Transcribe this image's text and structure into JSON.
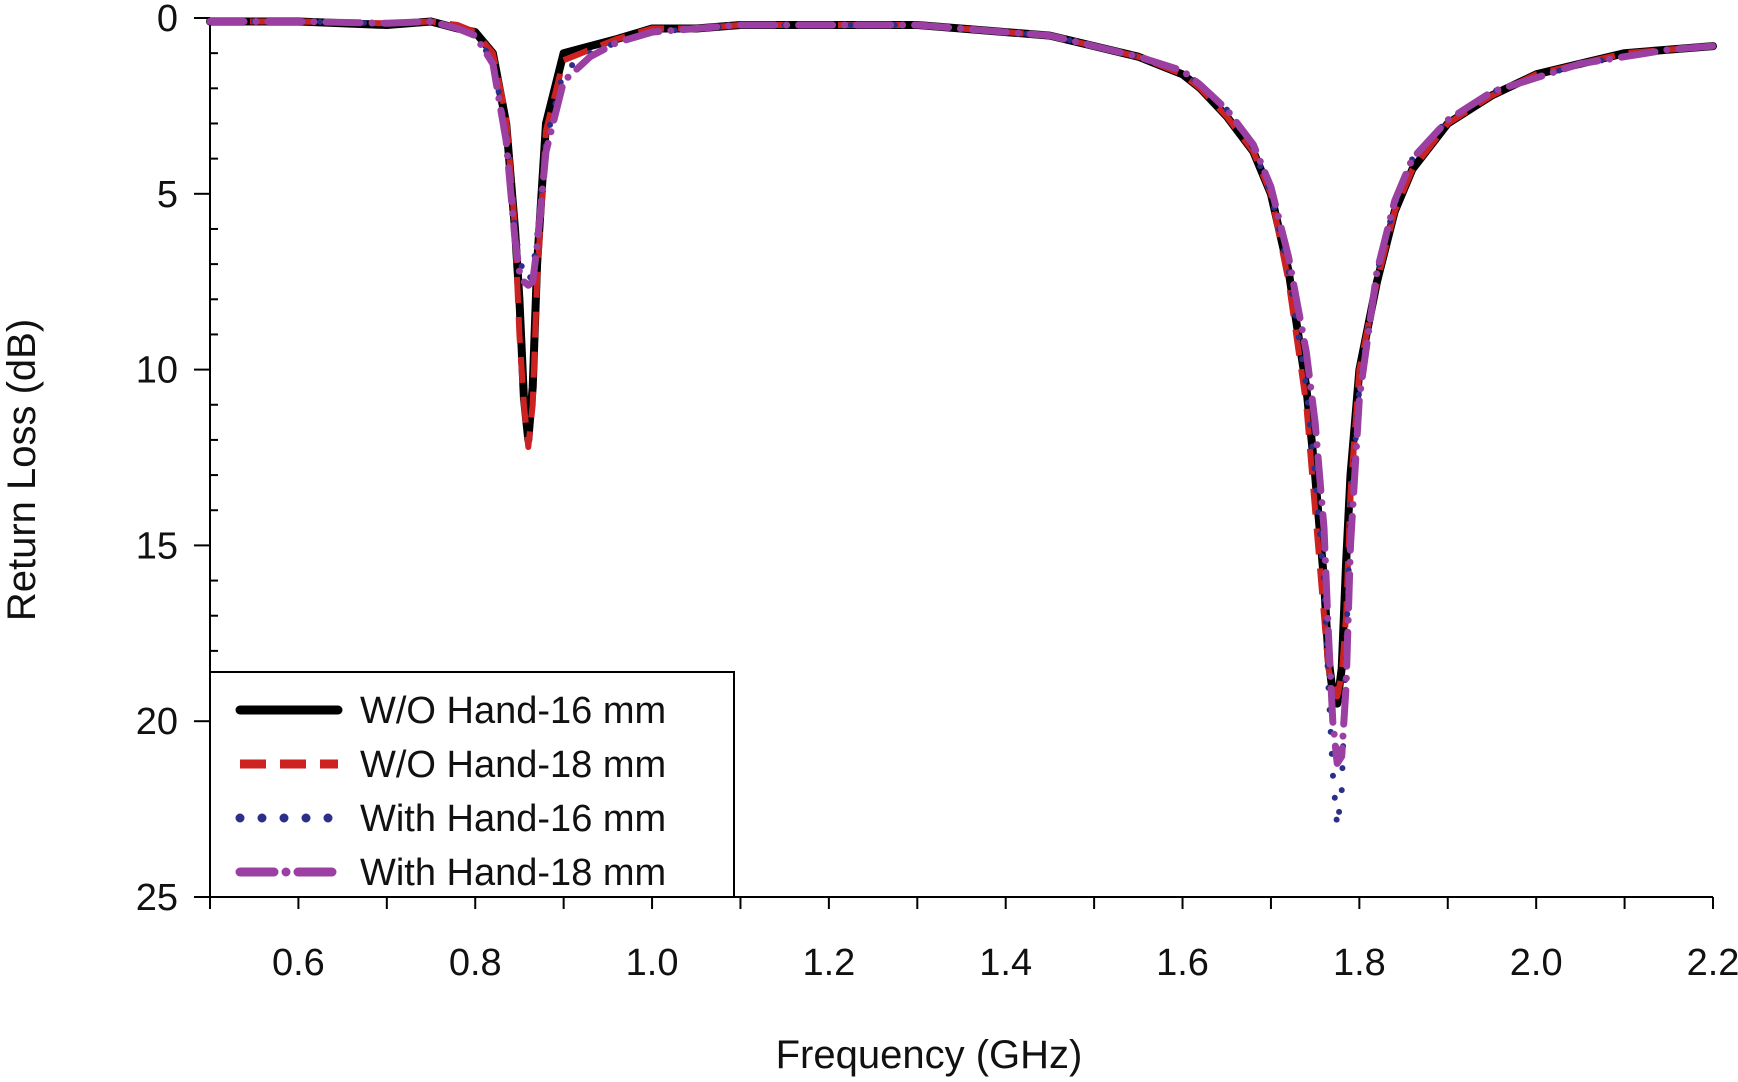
{
  "chart_data": {
    "type": "line",
    "title": "",
    "xlabel": "Frequency (GHz)",
    "ylabel": "Return Loss (dB)",
    "xlim": [
      0.5,
      2.2
    ],
    "ylim": [
      0,
      25
    ],
    "y_inverted": true,
    "x_ticks": [
      0.6,
      0.8,
      1.0,
      1.2,
      1.4,
      1.6,
      1.8,
      2.0,
      2.2
    ],
    "x_tick_labels": [
      "0.6",
      "0.8",
      "1.0",
      "1.2",
      "1.4",
      "1.6",
      "1.8",
      "2.0",
      "2.2"
    ],
    "y_ticks": [
      0,
      5,
      10,
      15,
      20,
      25
    ],
    "y_tick_labels": [
      "0",
      "5",
      "10",
      "15",
      "20",
      "25"
    ],
    "grid": false,
    "legend_position": "bottom-left",
    "series": [
      {
        "name": "W/O Hand-16 mm",
        "color": "#000000",
        "style": "solid",
        "x": [
          0.5,
          0.6,
          0.7,
          0.75,
          0.78,
          0.8,
          0.82,
          0.835,
          0.845,
          0.85,
          0.855,
          0.86,
          0.865,
          0.87,
          0.88,
          0.9,
          0.93,
          0.96,
          1.0,
          1.05,
          1.1,
          1.2,
          1.3,
          1.4,
          1.45,
          1.5,
          1.55,
          1.6,
          1.62,
          1.65,
          1.68,
          1.7,
          1.72,
          1.74,
          1.75,
          1.76,
          1.765,
          1.77,
          1.775,
          1.78,
          1.785,
          1.79,
          1.8,
          1.82,
          1.84,
          1.86,
          1.9,
          1.95,
          2.0,
          2.05,
          2.1,
          2.15,
          2.2
        ],
        "y": [
          0.1,
          0.1,
          0.2,
          0.1,
          0.3,
          0.4,
          1.0,
          3.0,
          6.0,
          8.0,
          10.8,
          12.0,
          10.5,
          7.0,
          3.0,
          1.0,
          0.8,
          0.6,
          0.3,
          0.3,
          0.2,
          0.2,
          0.2,
          0.4,
          0.5,
          0.8,
          1.1,
          1.6,
          2.0,
          2.8,
          3.8,
          5.0,
          7.2,
          10.5,
          13.0,
          16.0,
          18.2,
          19.2,
          19.5,
          18.5,
          15.5,
          13.0,
          10.0,
          7.5,
          5.5,
          4.3,
          3.0,
          2.2,
          1.6,
          1.3,
          1.0,
          0.9,
          0.8
        ]
      },
      {
        "name": "W/O Hand-18 mm",
        "color": "#cc2222",
        "style": "dashed",
        "x": [
          0.5,
          0.6,
          0.7,
          0.75,
          0.78,
          0.8,
          0.82,
          0.835,
          0.845,
          0.85,
          0.855,
          0.86,
          0.865,
          0.87,
          0.88,
          0.9,
          0.93,
          0.96,
          1.0,
          1.05,
          1.1,
          1.2,
          1.3,
          1.4,
          1.45,
          1.5,
          1.55,
          1.6,
          1.62,
          1.65,
          1.68,
          1.7,
          1.72,
          1.74,
          1.75,
          1.76,
          1.765,
          1.77,
          1.775,
          1.78,
          1.785,
          1.79,
          1.8,
          1.82,
          1.84,
          1.86,
          1.9,
          1.95,
          2.0,
          2.05,
          2.1,
          2.15,
          2.2
        ],
        "y": [
          0.1,
          0.1,
          0.15,
          0.1,
          0.2,
          0.4,
          1.0,
          2.8,
          6.0,
          9.0,
          11.0,
          12.2,
          11.0,
          7.5,
          3.2,
          1.2,
          0.9,
          0.6,
          0.3,
          0.3,
          0.2,
          0.2,
          0.2,
          0.4,
          0.5,
          0.8,
          1.1,
          1.6,
          2.0,
          2.8,
          3.8,
          5.0,
          7.5,
          11.0,
          14.0,
          17.0,
          18.5,
          19.0,
          19.3,
          18.7,
          17.0,
          13.5,
          10.0,
          7.5,
          5.5,
          4.3,
          3.0,
          2.2,
          1.6,
          1.3,
          1.0,
          0.9,
          0.8
        ]
      },
      {
        "name": "With Hand-16 mm",
        "color": "#2b2f8a",
        "style": "dotted",
        "x": [
          0.5,
          0.6,
          0.7,
          0.75,
          0.78,
          0.8,
          0.82,
          0.835,
          0.845,
          0.85,
          0.855,
          0.86,
          0.865,
          0.87,
          0.88,
          0.9,
          0.93,
          0.96,
          1.0,
          1.05,
          1.1,
          1.2,
          1.3,
          1.4,
          1.45,
          1.5,
          1.55,
          1.6,
          1.62,
          1.65,
          1.68,
          1.7,
          1.72,
          1.74,
          1.75,
          1.76,
          1.765,
          1.77,
          1.775,
          1.78,
          1.785,
          1.79,
          1.8,
          1.82,
          1.84,
          1.86,
          1.9,
          1.95,
          2.0,
          2.05,
          2.1,
          2.15,
          2.2
        ],
        "y": [
          0.1,
          0.1,
          0.15,
          0.1,
          0.3,
          0.5,
          1.2,
          3.3,
          6.0,
          6.8,
          7.3,
          7.5,
          7.2,
          6.2,
          3.5,
          1.5,
          1.0,
          0.7,
          0.4,
          0.3,
          0.2,
          0.2,
          0.2,
          0.4,
          0.5,
          0.8,
          1.1,
          1.5,
          1.9,
          2.6,
          3.7,
          5.0,
          7.2,
          10.5,
          13.0,
          16.0,
          19.0,
          21.5,
          23.0,
          22.0,
          18.0,
          14.0,
          10.5,
          7.2,
          5.3,
          4.0,
          2.9,
          2.1,
          1.7,
          1.3,
          1.1,
          0.9,
          0.8
        ]
      },
      {
        "name": "With Hand-18 mm",
        "color": "#9b3fa3",
        "style": "dash-dot",
        "x": [
          0.5,
          0.6,
          0.7,
          0.75,
          0.78,
          0.8,
          0.82,
          0.835,
          0.845,
          0.85,
          0.855,
          0.86,
          0.865,
          0.87,
          0.88,
          0.9,
          0.93,
          0.96,
          1.0,
          1.05,
          1.1,
          1.2,
          1.3,
          1.4,
          1.45,
          1.5,
          1.55,
          1.6,
          1.62,
          1.65,
          1.68,
          1.7,
          1.72,
          1.74,
          1.75,
          1.76,
          1.765,
          1.77,
          1.775,
          1.78,
          1.785,
          1.79,
          1.8,
          1.82,
          1.84,
          1.86,
          1.9,
          1.95,
          2.0,
          2.05,
          2.1,
          2.15,
          2.2
        ],
        "y": [
          0.1,
          0.1,
          0.15,
          0.1,
          0.3,
          0.5,
          1.3,
          3.5,
          6.3,
          7.2,
          7.5,
          7.6,
          7.5,
          6.5,
          3.8,
          1.8,
          1.1,
          0.7,
          0.4,
          0.3,
          0.2,
          0.2,
          0.2,
          0.4,
          0.5,
          0.8,
          1.1,
          1.5,
          1.9,
          2.6,
          3.6,
          4.8,
          6.8,
          9.5,
          11.5,
          14.5,
          17.5,
          20.0,
          21.2,
          21.0,
          19.0,
          15.0,
          10.8,
          7.2,
          5.2,
          4.0,
          2.9,
          2.1,
          1.7,
          1.3,
          1.1,
          0.9,
          0.8
        ]
      }
    ]
  }
}
